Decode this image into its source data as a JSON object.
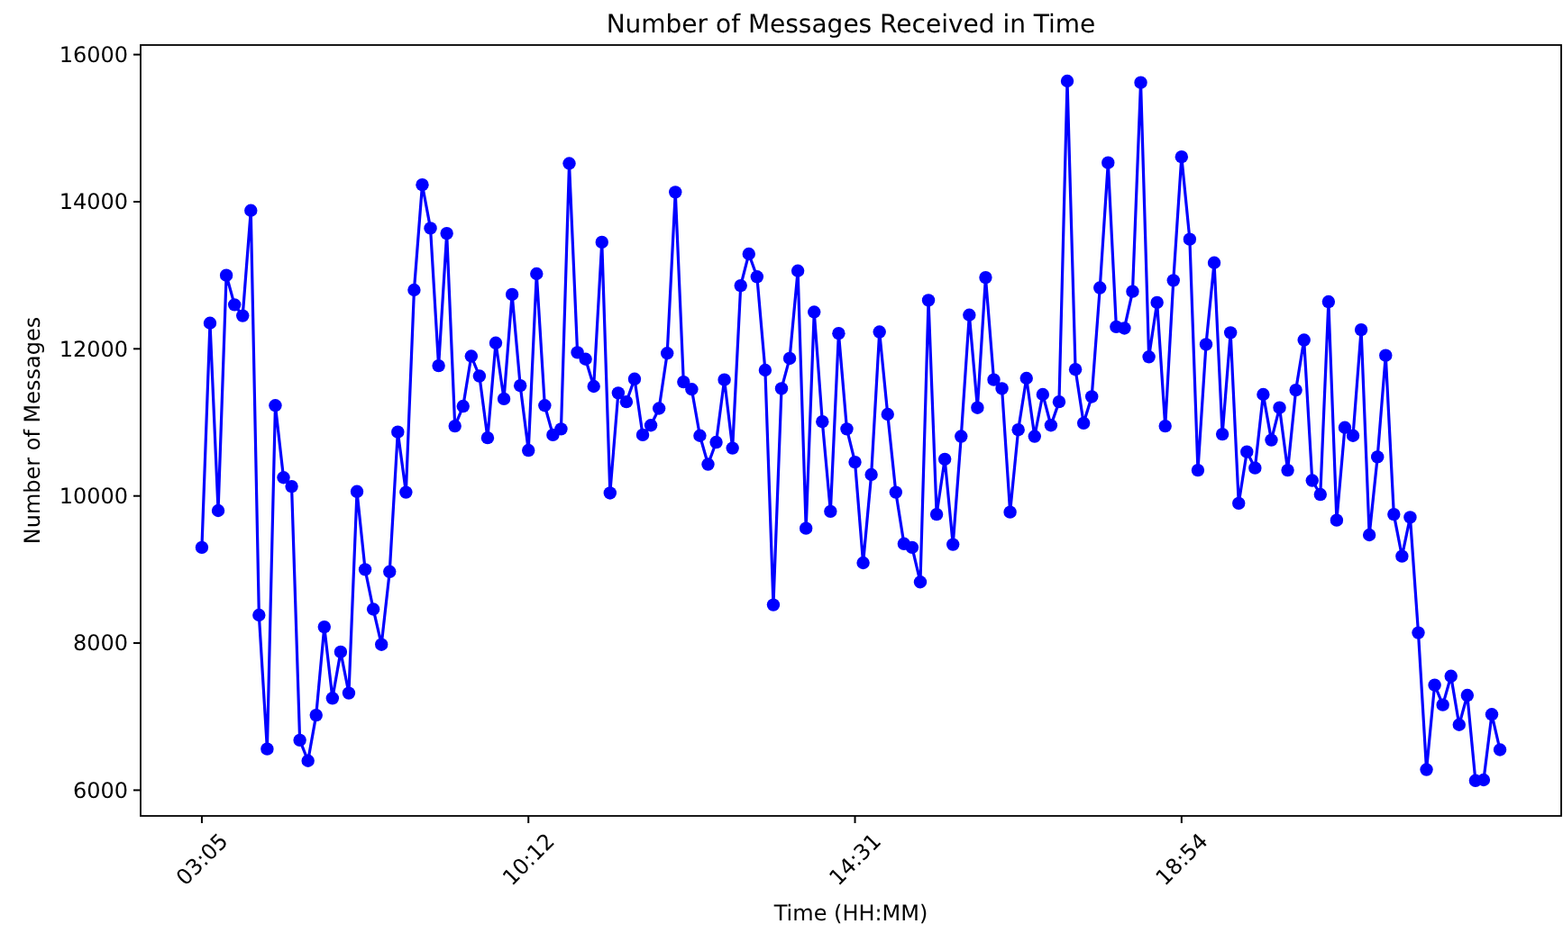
{
  "chart_data": {
    "type": "line",
    "title": "Number of Messages Received in Time",
    "xlabel": "Time (HH:MM)",
    "ylabel": "Number of Messages",
    "categories": [
      "03:05",
      null,
      null,
      null,
      null,
      null,
      null,
      null,
      null,
      null,
      null,
      null,
      null,
      null,
      null,
      null,
      null,
      null,
      null,
      null,
      null,
      null,
      null,
      null,
      null,
      null,
      null,
      null,
      null,
      null,
      null,
      null,
      null,
      null,
      null,
      null,
      null,
      null,
      null,
      null,
      "10:12",
      null,
      null,
      null,
      null,
      null,
      null,
      null,
      null,
      null,
      null,
      null,
      null,
      null,
      null,
      null,
      null,
      null,
      null,
      null,
      null,
      null,
      null,
      null,
      null,
      null,
      null,
      null,
      null,
      null,
      null,
      null,
      null,
      null,
      null,
      null,
      null,
      null,
      null,
      null,
      "14:31",
      null,
      null,
      null,
      null,
      null,
      null,
      null,
      null,
      null,
      null,
      null,
      null,
      null,
      null,
      null,
      null,
      null,
      null,
      null,
      null,
      null,
      null,
      null,
      null,
      null,
      null,
      null,
      null,
      null,
      null,
      null,
      null,
      null,
      null,
      null,
      null,
      null,
      null,
      null,
      "18:54",
      null,
      null,
      null,
      null,
      null,
      null,
      null,
      null,
      null,
      null,
      null,
      null,
      null,
      null,
      null,
      null,
      null,
      null,
      null,
      null,
      null,
      null,
      null,
      null,
      null,
      null,
      null,
      null,
      null,
      null,
      null,
      null,
      null,
      null,
      null,
      null,
      null,
      null,
      null
    ],
    "series": [
      {
        "color": "#0000ff",
        "values": [
          9300,
          12350,
          9800,
          13000,
          12600,
          12450,
          13880,
          8380,
          6560,
          11230,
          10250,
          10130,
          6680,
          6400,
          7020,
          8220,
          7250,
          7880,
          7320,
          10060,
          9000,
          8460,
          7980,
          8970,
          10870,
          10050,
          12800,
          14230,
          13640,
          11770,
          13570,
          10950,
          11220,
          11900,
          11630,
          10790,
          12080,
          11320,
          12740,
          11500,
          10620,
          13020,
          11230,
          10830,
          10910,
          14520,
          11950,
          11860,
          11490,
          13450,
          10040,
          11400,
          11280,
          11590,
          10830,
          10960,
          11190,
          11940,
          14130,
          11550,
          11450,
          10820,
          10430,
          10730,
          11580,
          10650,
          12860,
          13290,
          12980,
          11710,
          8520,
          11460,
          11870,
          13060,
          9560,
          12500,
          11010,
          9790,
          12210,
          10910,
          10460,
          9090,
          10290,
          12230,
          11110,
          10050,
          9350,
          9300,
          8830,
          12660,
          9750,
          10500,
          9340,
          10810,
          12460,
          11200,
          12970,
          11580,
          11460,
          9780,
          10900,
          11600,
          10810,
          11380,
          10960,
          11280,
          15640,
          11720,
          10990,
          11350,
          12830,
          14530,
          12300,
          12280,
          12780,
          15620,
          11890,
          12630,
          10950,
          12930,
          14610,
          13490,
          10350,
          12060,
          13170,
          10840,
          12220,
          9900,
          10600,
          10380,
          11380,
          10760,
          11200,
          10350,
          11440,
          12120,
          10210,
          10020,
          12640,
          9670,
          10930,
          10820,
          12260,
          9470,
          10530,
          11910,
          9750,
          9180,
          9710,
          8140,
          6280,
          7430,
          7160,
          7550,
          6890,
          7290,
          6130,
          6140,
          7030,
          6550
        ]
      }
    ],
    "ylim": [
      5650,
      16130
    ],
    "yticks": [
      6000,
      8000,
      10000,
      12000,
      14000,
      16000
    ],
    "grid": false,
    "marker": "circle",
    "line_style": "solid"
  }
}
